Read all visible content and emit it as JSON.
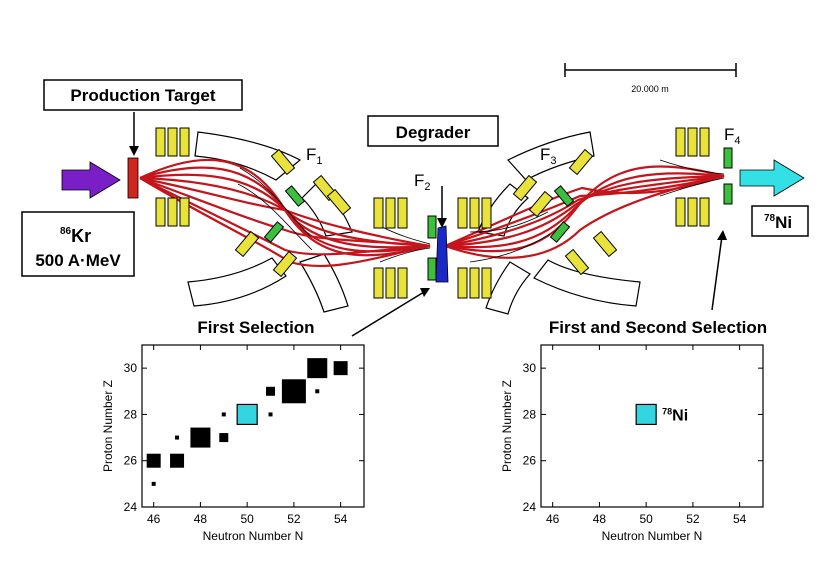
{
  "labels": {
    "production_target": "Production Target",
    "degrader": "Degrader",
    "f1": "F",
    "f1_sub": "1",
    "f2": "F",
    "f2_sub": "2",
    "f3": "F",
    "f3_sub": "3",
    "f4": "F",
    "f4_sub": "4",
    "scale_bar": "20.000 m",
    "beam_mass": "86",
    "beam_element": "Kr",
    "beam_energy": "500 A·MeV",
    "product_mass": "78",
    "product_element": "Ni",
    "first_selection": "First Selection",
    "first_second_selection": "First and Second Selection"
  },
  "chart_data": [
    {
      "type": "scatter",
      "title": "First Selection",
      "xlabel": "Neutron Number N",
      "ylabel": "Proton Number Z",
      "xlim": [
        45.5,
        55
      ],
      "ylim": [
        24,
        31
      ],
      "xticks": [
        46,
        48,
        50,
        52,
        54
      ],
      "yticks": [
        24,
        26,
        28,
        30
      ],
      "points": [
        {
          "n": 46,
          "z": 26,
          "size": "medium",
          "color": "#000000"
        },
        {
          "n": 46,
          "z": 25,
          "size": "dot",
          "color": "#000000"
        },
        {
          "n": 47,
          "z": 26,
          "size": "medium",
          "color": "#000000"
        },
        {
          "n": 47,
          "z": 27,
          "size": "dot",
          "color": "#000000"
        },
        {
          "n": 48,
          "z": 27,
          "size": "large",
          "color": "#000000"
        },
        {
          "n": 49,
          "z": 27,
          "size": "small",
          "color": "#000000"
        },
        {
          "n": 49,
          "z": 28,
          "size": "dot",
          "color": "#000000"
        },
        {
          "n": 50,
          "z": 28,
          "size": "large",
          "color": "#33d6e0"
        },
        {
          "n": 51,
          "z": 28,
          "size": "dot",
          "color": "#000000"
        },
        {
          "n": 51,
          "z": 29,
          "size": "small",
          "color": "#000000"
        },
        {
          "n": 52,
          "z": 29,
          "size": "xlarge",
          "color": "#000000"
        },
        {
          "n": 53,
          "z": 29,
          "size": "dot",
          "color": "#000000"
        },
        {
          "n": 53,
          "z": 30,
          "size": "large",
          "color": "#000000"
        },
        {
          "n": 54,
          "z": 30,
          "size": "medium",
          "color": "#000000"
        }
      ]
    },
    {
      "type": "scatter",
      "title": "First and Second Selection",
      "xlabel": "Neutron Number N",
      "ylabel": "Proton Number Z",
      "xlim": [
        45.5,
        55
      ],
      "ylim": [
        24,
        31
      ],
      "xticks": [
        46,
        48,
        50,
        52,
        54
      ],
      "yticks": [
        24,
        26,
        28,
        30
      ],
      "points": [
        {
          "n": 50,
          "z": 28,
          "size": "large",
          "color": "#33d6e0",
          "label_mass": "78",
          "label_element": "Ni"
        }
      ]
    }
  ],
  "colors": {
    "beam_in": "#7a1fc8",
    "beam_out": "#33e0e6",
    "trajectory": "#c4151c",
    "quadrupole": "#e8e23a",
    "sextupole": "#3cbf3c",
    "degrader": "#1a28c8",
    "target": "#d0261f",
    "point": "#000000",
    "highlight": "#33d6e0"
  }
}
